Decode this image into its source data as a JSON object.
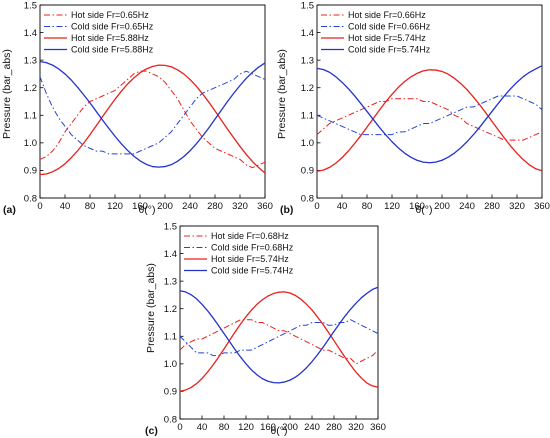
{
  "chart_data": [
    {
      "type": "line",
      "panel_label": "(a)",
      "xlabel": "θ(°)",
      "ylabel": "Pressure (bar_abs)",
      "xlim": [
        0,
        360
      ],
      "ylim": [
        0.8,
        1.5
      ],
      "xticks": [
        0,
        40,
        80,
        120,
        160,
        200,
        240,
        280,
        320,
        360
      ],
      "yticks": [
        0.8,
        0.9,
        1.0,
        1.1,
        1.2,
        1.3,
        1.4,
        1.5
      ],
      "ytick_labels": [
        "0.8",
        "0.9",
        "1.0",
        "1.1",
        "1.2",
        "1.3",
        "1.4",
        "1.5"
      ],
      "legend_position": "top-left",
      "grid": false,
      "series": [
        {
          "name": "Hot side Fr=0.65Hz",
          "color": "#e8211c",
          "style": "dashdot",
          "x": [
            0,
            10,
            20,
            30,
            40,
            50,
            60,
            70,
            80,
            90,
            100,
            110,
            120,
            130,
            140,
            150,
            160,
            170,
            180,
            190,
            200,
            210,
            220,
            230,
            240,
            250,
            260,
            270,
            280,
            290,
            300,
            310,
            320,
            330,
            340,
            350,
            360
          ],
          "y": [
            0.94,
            0.95,
            0.97,
            1.0,
            1.04,
            1.07,
            1.1,
            1.13,
            1.15,
            1.16,
            1.17,
            1.18,
            1.19,
            1.21,
            1.23,
            1.25,
            1.26,
            1.26,
            1.25,
            1.24,
            1.22,
            1.19,
            1.16,
            1.12,
            1.08,
            1.05,
            1.02,
            1.0,
            0.98,
            0.97,
            0.96,
            0.95,
            0.94,
            0.92,
            0.91,
            0.92,
            0.93
          ]
        },
        {
          "name": "Cold side Fr=0.65Hz",
          "color": "#2244dd",
          "style": "dashdot",
          "x": [
            0,
            10,
            20,
            30,
            40,
            50,
            60,
            70,
            80,
            90,
            100,
            110,
            120,
            130,
            140,
            150,
            160,
            170,
            180,
            190,
            200,
            210,
            220,
            230,
            240,
            250,
            260,
            270,
            280,
            290,
            300,
            310,
            320,
            330,
            340,
            350,
            360
          ],
          "y": [
            1.24,
            1.18,
            1.13,
            1.09,
            1.06,
            1.03,
            1.01,
            0.99,
            0.98,
            0.97,
            0.97,
            0.96,
            0.96,
            0.96,
            0.96,
            0.96,
            0.97,
            0.98,
            0.99,
            1.0,
            1.02,
            1.04,
            1.07,
            1.1,
            1.13,
            1.16,
            1.18,
            1.19,
            1.2,
            1.21,
            1.22,
            1.23,
            1.25,
            1.26,
            1.25,
            1.24,
            1.23
          ]
        },
        {
          "name": "Hot side Fr=5.88Hz",
          "color": "#e8211c",
          "style": "solid",
          "x": [
            0,
            10,
            20,
            30,
            40,
            50,
            60,
            70,
            80,
            90,
            100,
            110,
            120,
            130,
            140,
            150,
            160,
            170,
            180,
            190,
            200,
            210,
            220,
            230,
            240,
            250,
            260,
            270,
            280,
            290,
            300,
            310,
            320,
            330,
            340,
            350,
            360
          ],
          "y": [
            0.885,
            0.887,
            0.895,
            0.907,
            0.924,
            0.946,
            0.971,
            0.999,
            1.03,
            1.062,
            1.095,
            1.127,
            1.158,
            1.187,
            1.213,
            1.235,
            1.254,
            1.268,
            1.277,
            1.282,
            1.281,
            1.276,
            1.265,
            1.25,
            1.23,
            1.206,
            1.178,
            1.148,
            1.116,
            1.083,
            1.05,
            1.018,
            0.987,
            0.958,
            0.932,
            0.91,
            0.89
          ]
        },
        {
          "name": "Cold side Fr=5.88Hz",
          "color": "#2233cc",
          "style": "solid",
          "x": [
            0,
            10,
            20,
            30,
            40,
            50,
            60,
            70,
            80,
            90,
            100,
            110,
            120,
            130,
            140,
            150,
            160,
            170,
            180,
            190,
            200,
            210,
            220,
            230,
            240,
            250,
            260,
            270,
            280,
            290,
            300,
            310,
            320,
            330,
            340,
            350,
            360
          ],
          "y": [
            1.295,
            1.291,
            1.282,
            1.268,
            1.25,
            1.228,
            1.202,
            1.174,
            1.145,
            1.114,
            1.083,
            1.053,
            1.024,
            0.997,
            0.973,
            0.952,
            0.935,
            0.922,
            0.914,
            0.912,
            0.914,
            0.921,
            0.933,
            0.95,
            0.971,
            0.996,
            1.024,
            1.054,
            1.086,
            1.118,
            1.15,
            1.18,
            1.208,
            1.234,
            1.256,
            1.275,
            1.29
          ]
        }
      ]
    },
    {
      "type": "line",
      "panel_label": "(b)",
      "xlabel": "θ(°)",
      "ylabel": "Pressure (bar_abs)",
      "xlim": [
        0,
        360
      ],
      "ylim": [
        0.8,
        1.5
      ],
      "xticks": [
        0,
        40,
        80,
        120,
        160,
        200,
        240,
        280,
        320,
        360
      ],
      "yticks": [
        0.8,
        0.9,
        1.0,
        1.1,
        1.2,
        1.3,
        1.4,
        1.5
      ],
      "ytick_labels": [
        "0.8",
        "0.9",
        "1.0",
        "1.1",
        "1.2",
        "1.3",
        "1.4",
        "1.5"
      ],
      "legend_position": "top-left",
      "grid": false,
      "series": [
        {
          "name": "Hot side Fr=0.66Hz",
          "color": "#e8211c",
          "style": "dashdot",
          "x": [
            0,
            10,
            20,
            30,
            40,
            50,
            60,
            70,
            80,
            90,
            100,
            110,
            120,
            130,
            140,
            150,
            160,
            170,
            180,
            190,
            200,
            210,
            220,
            230,
            240,
            250,
            260,
            270,
            280,
            290,
            300,
            310,
            320,
            330,
            340,
            350,
            360
          ],
          "y": [
            1.03,
            1.05,
            1.07,
            1.08,
            1.09,
            1.1,
            1.11,
            1.12,
            1.13,
            1.14,
            1.15,
            1.15,
            1.16,
            1.16,
            1.16,
            1.16,
            1.16,
            1.15,
            1.15,
            1.14,
            1.13,
            1.12,
            1.1,
            1.09,
            1.07,
            1.06,
            1.05,
            1.04,
            1.03,
            1.02,
            1.01,
            1.01,
            1.01,
            1.01,
            1.02,
            1.03,
            1.04
          ]
        },
        {
          "name": "Cold side Fr=0.66Hz",
          "color": "#2244dd",
          "style": "dashdot",
          "x": [
            0,
            10,
            20,
            30,
            40,
            50,
            60,
            70,
            80,
            90,
            100,
            110,
            120,
            130,
            140,
            150,
            160,
            170,
            180,
            190,
            200,
            210,
            220,
            230,
            240,
            250,
            260,
            270,
            280,
            290,
            300,
            310,
            320,
            330,
            340,
            350,
            360
          ],
          "y": [
            1.1,
            1.09,
            1.08,
            1.07,
            1.06,
            1.05,
            1.04,
            1.03,
            1.03,
            1.03,
            1.03,
            1.03,
            1.03,
            1.04,
            1.04,
            1.05,
            1.06,
            1.07,
            1.07,
            1.08,
            1.09,
            1.1,
            1.11,
            1.12,
            1.13,
            1.13,
            1.14,
            1.15,
            1.16,
            1.17,
            1.17,
            1.17,
            1.17,
            1.16,
            1.15,
            1.14,
            1.12
          ]
        },
        {
          "name": "Hot side Fr=5.74Hz",
          "color": "#e8211c",
          "style": "solid",
          "x": [
            0,
            10,
            20,
            30,
            40,
            50,
            60,
            70,
            80,
            90,
            100,
            110,
            120,
            130,
            140,
            150,
            160,
            170,
            180,
            190,
            200,
            210,
            220,
            230,
            240,
            250,
            260,
            270,
            280,
            290,
            300,
            310,
            320,
            330,
            340,
            350,
            360
          ],
          "y": [
            0.897,
            0.901,
            0.911,
            0.926,
            0.946,
            0.97,
            0.997,
            1.026,
            1.057,
            1.088,
            1.119,
            1.149,
            1.176,
            1.201,
            1.222,
            1.239,
            1.252,
            1.261,
            1.265,
            1.264,
            1.259,
            1.249,
            1.234,
            1.215,
            1.193,
            1.167,
            1.139,
            1.109,
            1.078,
            1.047,
            1.017,
            0.988,
            0.962,
            0.939,
            0.92,
            0.906,
            0.899
          ]
        },
        {
          "name": "Cold side Fr=5.74Hz",
          "color": "#2233cc",
          "style": "solid",
          "x": [
            0,
            10,
            20,
            30,
            40,
            50,
            60,
            70,
            80,
            90,
            100,
            110,
            120,
            130,
            140,
            150,
            160,
            170,
            180,
            190,
            200,
            210,
            220,
            230,
            240,
            250,
            260,
            270,
            280,
            290,
            300,
            310,
            320,
            330,
            340,
            350,
            360
          ],
          "y": [
            1.27,
            1.266,
            1.256,
            1.24,
            1.22,
            1.197,
            1.171,
            1.143,
            1.114,
            1.085,
            1.056,
            1.029,
            1.004,
            0.982,
            0.963,
            0.948,
            0.937,
            0.93,
            0.928,
            0.93,
            0.937,
            0.948,
            0.963,
            0.982,
            1.004,
            1.029,
            1.056,
            1.085,
            1.114,
            1.143,
            1.171,
            1.197,
            1.22,
            1.24,
            1.256,
            1.268,
            1.28
          ]
        }
      ]
    },
    {
      "type": "line",
      "panel_label": "(c)",
      "xlabel": "θ(°)",
      "ylabel": "Pressure (bar_abs)",
      "xlim": [
        0,
        360
      ],
      "ylim": [
        0.8,
        1.5
      ],
      "xticks": [
        0,
        40,
        80,
        120,
        160,
        200,
        240,
        280,
        320,
        360
      ],
      "yticks": [
        0.8,
        0.9,
        1.0,
        1.1,
        1.2,
        1.3,
        1.4,
        1.5
      ],
      "ytick_labels": [
        "0.8",
        "0.9",
        "1.0",
        "1.1",
        "1.2",
        "1.3",
        "1.4",
        "1.5"
      ],
      "legend_position": "top-left",
      "grid": false,
      "series": [
        {
          "name": "Hot side Fr=0.68Hz",
          "color": "#e8211c",
          "style": "dashdot",
          "x": [
            0,
            10,
            20,
            30,
            40,
            50,
            60,
            70,
            80,
            90,
            100,
            110,
            120,
            130,
            140,
            150,
            160,
            170,
            180,
            190,
            200,
            210,
            220,
            230,
            240,
            250,
            260,
            270,
            280,
            290,
            300,
            310,
            320,
            330,
            340,
            350,
            360
          ],
          "y": [
            1.05,
            1.07,
            1.08,
            1.09,
            1.09,
            1.1,
            1.11,
            1.12,
            1.13,
            1.14,
            1.15,
            1.16,
            1.16,
            1.16,
            1.15,
            1.15,
            1.14,
            1.13,
            1.12,
            1.12,
            1.11,
            1.1,
            1.09,
            1.08,
            1.07,
            1.06,
            1.05,
            1.05,
            1.04,
            1.03,
            1.02,
            1.02,
            1.0,
            1.01,
            1.02,
            1.03,
            1.05
          ]
        },
        {
          "name": "Cold side Fr=0.68Hz",
          "color": "#2244dd",
          "style": "dashdot",
          "x": [
            0,
            10,
            20,
            30,
            40,
            50,
            60,
            70,
            80,
            90,
            100,
            110,
            120,
            130,
            140,
            150,
            160,
            170,
            180,
            190,
            200,
            210,
            220,
            230,
            240,
            250,
            260,
            270,
            280,
            290,
            300,
            310,
            320,
            330,
            340,
            350,
            360
          ],
          "y": [
            1.1,
            1.08,
            1.06,
            1.04,
            1.04,
            1.04,
            1.03,
            1.03,
            1.04,
            1.04,
            1.04,
            1.05,
            1.05,
            1.05,
            1.06,
            1.07,
            1.08,
            1.09,
            1.1,
            1.11,
            1.12,
            1.13,
            1.14,
            1.14,
            1.15,
            1.15,
            1.15,
            1.14,
            1.14,
            1.15,
            1.15,
            1.16,
            1.15,
            1.14,
            1.13,
            1.12,
            1.11
          ]
        },
        {
          "name": "Hot side Fr=5.74Hz",
          "color": "#e8211c",
          "style": "solid",
          "x": [
            0,
            10,
            20,
            30,
            40,
            50,
            60,
            70,
            80,
            90,
            100,
            110,
            120,
            130,
            140,
            150,
            160,
            170,
            180,
            190,
            200,
            210,
            220,
            230,
            240,
            250,
            260,
            270,
            280,
            290,
            300,
            310,
            320,
            330,
            340,
            350,
            360
          ],
          "y": [
            0.9,
            0.905,
            0.914,
            0.928,
            0.947,
            0.97,
            0.996,
            1.024,
            1.054,
            1.085,
            1.115,
            1.144,
            1.171,
            1.195,
            1.216,
            1.233,
            1.246,
            1.255,
            1.26,
            1.261,
            1.257,
            1.248,
            1.234,
            1.216,
            1.195,
            1.17,
            1.143,
            1.114,
            1.084,
            1.054,
            1.024,
            0.996,
            0.97,
            0.948,
            0.93,
            0.92,
            0.915
          ]
        },
        {
          "name": "Cold side Fr=5.74Hz",
          "color": "#2233cc",
          "style": "solid",
          "x": [
            0,
            10,
            20,
            30,
            40,
            50,
            60,
            70,
            80,
            90,
            100,
            110,
            120,
            130,
            140,
            150,
            160,
            170,
            180,
            190,
            200,
            210,
            220,
            230,
            240,
            250,
            260,
            270,
            280,
            290,
            300,
            310,
            320,
            330,
            340,
            350,
            360
          ],
          "y": [
            1.265,
            1.261,
            1.251,
            1.236,
            1.216,
            1.193,
            1.167,
            1.139,
            1.11,
            1.081,
            1.052,
            1.025,
            1.0,
            0.978,
            0.96,
            0.946,
            0.937,
            0.932,
            0.931,
            0.934,
            0.941,
            0.952,
            0.967,
            0.986,
            1.008,
            1.033,
            1.06,
            1.089,
            1.118,
            1.146,
            1.173,
            1.198,
            1.22,
            1.24,
            1.256,
            1.27,
            1.278
          ]
        }
      ]
    }
  ]
}
